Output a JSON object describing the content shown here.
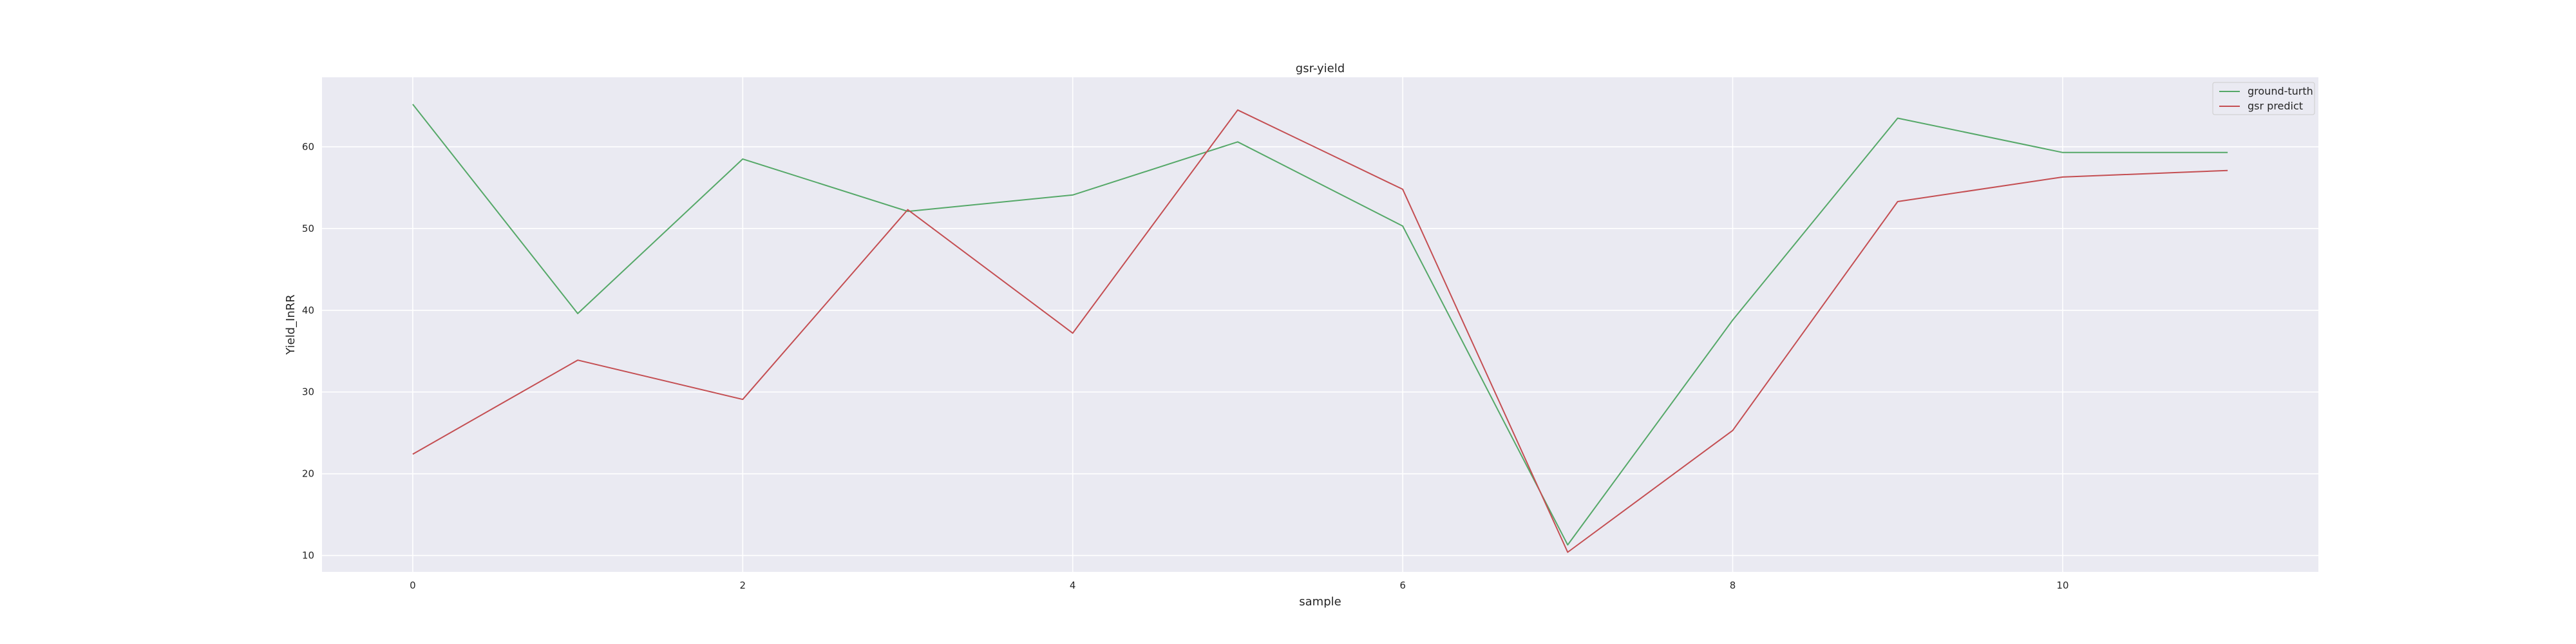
{
  "chart_data": {
    "type": "line",
    "title": "gsr-yield",
    "xlabel": "sample",
    "ylabel": "Yield_InRR",
    "x": [
      0,
      1,
      2,
      3,
      4,
      5,
      6,
      7,
      8,
      9,
      10,
      11
    ],
    "xlim": [
      -0.55,
      11.55
    ],
    "ylim": [
      8,
      68.5
    ],
    "xticks": [
      0,
      2,
      4,
      6,
      8,
      10
    ],
    "yticks": [
      10,
      20,
      30,
      40,
      50,
      60
    ],
    "grid": true,
    "legend_position": "top-right",
    "series": [
      {
        "name": "ground-turth",
        "color": "#55a868",
        "values": [
          65.2,
          39.6,
          58.5,
          52.1,
          54.1,
          60.6,
          50.3,
          11.3,
          38.8,
          63.5,
          59.3,
          59.3
        ]
      },
      {
        "name": "gsr predict",
        "color": "#c44e52",
        "values": [
          22.4,
          33.9,
          29.1,
          52.3,
          37.2,
          64.5,
          54.8,
          10.4,
          25.3,
          53.3,
          56.3,
          57.1
        ]
      }
    ]
  }
}
